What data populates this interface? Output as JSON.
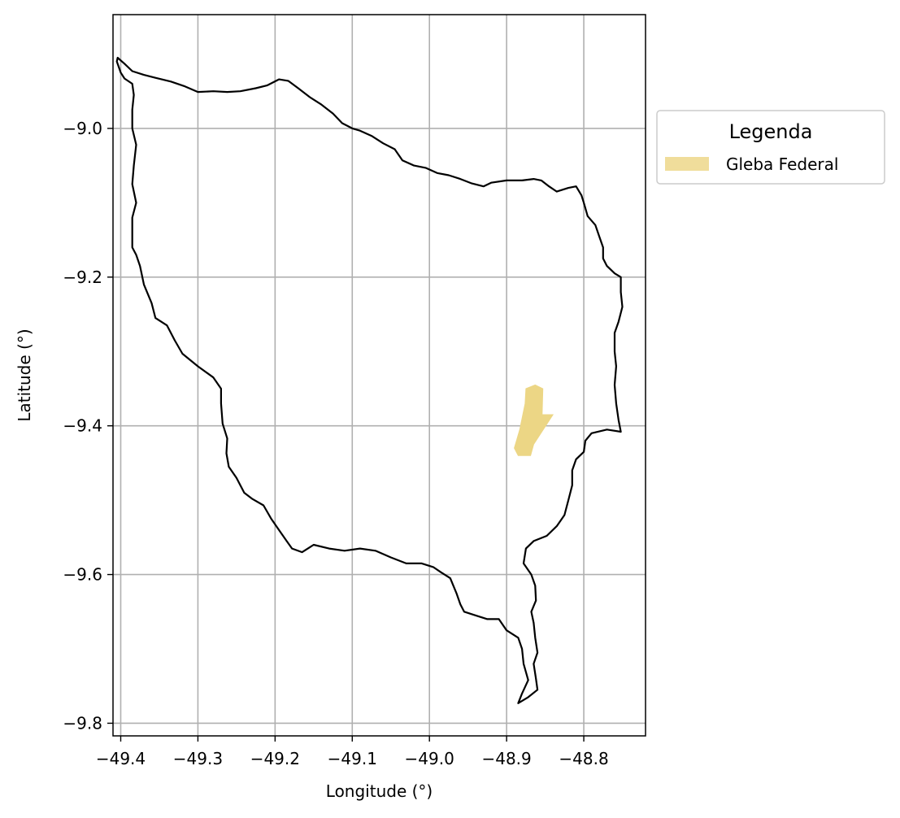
{
  "chart_data": {
    "type": "map",
    "title": "",
    "xlabel": "Longitude (°)",
    "ylabel": "Latitude (°)",
    "xlim": [
      -49.41,
      -48.72
    ],
    "ylim": [
      -9.817,
      -8.847
    ],
    "xticks": [
      -49.4,
      -49.3,
      -49.2,
      -49.1,
      -49.0,
      -48.9,
      -48.8
    ],
    "xtick_labels": [
      "−49.4",
      "−49.3",
      "−49.2",
      "−49.1",
      "−49.0",
      "−48.9",
      "−48.8"
    ],
    "yticks": [
      -9.0,
      -9.2,
      -9.4,
      -9.6,
      -9.8
    ],
    "ytick_labels": [
      "−9.0",
      "−9.2",
      "−9.4",
      "−9.6",
      "−9.8"
    ],
    "grid": true,
    "legend": {
      "title": "Legenda",
      "placement": "outside-right-top",
      "entries": [
        {
          "label": "Gleba Federal",
          "color": "#f0dd9b"
        }
      ]
    },
    "colors": {
      "boundary": "#000000",
      "gleba_fill": "#ecd685",
      "grid": "#b0b0b0"
    },
    "boundary": [
      [
        -49.404,
        -8.905
      ],
      [
        -49.395,
        -8.913
      ],
      [
        -49.385,
        -8.923
      ],
      [
        -49.37,
        -8.928
      ],
      [
        -49.355,
        -8.932
      ],
      [
        -49.335,
        -8.937
      ],
      [
        -49.318,
        -8.943
      ],
      [
        -49.3,
        -8.951
      ],
      [
        -49.28,
        -8.95
      ],
      [
        -49.262,
        -8.951
      ],
      [
        -49.245,
        -8.95
      ],
      [
        -49.225,
        -8.946
      ],
      [
        -49.21,
        -8.942
      ],
      [
        -49.195,
        -8.934
      ],
      [
        -49.183,
        -8.936
      ],
      [
        -49.17,
        -8.946
      ],
      [
        -49.155,
        -8.958
      ],
      [
        -49.14,
        -8.968
      ],
      [
        -49.125,
        -8.98
      ],
      [
        -49.113,
        -8.993
      ],
      [
        -49.1,
        -9.0
      ],
      [
        -49.09,
        -9.003
      ],
      [
        -49.075,
        -9.01
      ],
      [
        -49.06,
        -9.02
      ],
      [
        -49.045,
        -9.028
      ],
      [
        -49.035,
        -9.043
      ],
      [
        -49.02,
        -9.05
      ],
      [
        -49.005,
        -9.053
      ],
      [
        -48.99,
        -9.06
      ],
      [
        -48.975,
        -9.063
      ],
      [
        -48.96,
        -9.068
      ],
      [
        -48.945,
        -9.074
      ],
      [
        -48.93,
        -9.078
      ],
      [
        -48.92,
        -9.073
      ],
      [
        -48.9,
        -9.07
      ],
      [
        -48.88,
        -9.07
      ],
      [
        -48.865,
        -9.068
      ],
      [
        -48.855,
        -9.07
      ],
      [
        -48.845,
        -9.078
      ],
      [
        -48.835,
        -9.085
      ],
      [
        -48.82,
        -9.08
      ],
      [
        -48.81,
        -9.078
      ],
      [
        -48.803,
        -9.09
      ],
      [
        -48.8,
        -9.1
      ],
      [
        -48.795,
        -9.118
      ],
      [
        -48.785,
        -9.13
      ],
      [
        -48.78,
        -9.145
      ],
      [
        -48.775,
        -9.16
      ],
      [
        -48.775,
        -9.175
      ],
      [
        -48.77,
        -9.185
      ],
      [
        -48.76,
        -9.195
      ],
      [
        -48.752,
        -9.2
      ],
      [
        -48.752,
        -9.22
      ],
      [
        -48.75,
        -9.24
      ],
      [
        -48.755,
        -9.26
      ],
      [
        -48.76,
        -9.275
      ],
      [
        -48.76,
        -9.3
      ],
      [
        -48.758,
        -9.32
      ],
      [
        -48.76,
        -9.345
      ],
      [
        -48.758,
        -9.37
      ],
      [
        -48.755,
        -9.392
      ],
      [
        -48.752,
        -9.408
      ],
      [
        -48.77,
        -9.405
      ],
      [
        -48.79,
        -9.41
      ],
      [
        -48.798,
        -9.42
      ],
      [
        -48.8,
        -9.435
      ],
      [
        -48.81,
        -9.445
      ],
      [
        -48.815,
        -9.46
      ],
      [
        -48.815,
        -9.48
      ],
      [
        -48.82,
        -9.5
      ],
      [
        -48.825,
        -9.52
      ],
      [
        -48.835,
        -9.535
      ],
      [
        -48.848,
        -9.548
      ],
      [
        -48.865,
        -9.555
      ],
      [
        -48.875,
        -9.565
      ],
      [
        -48.878,
        -9.585
      ],
      [
        -48.868,
        -9.6
      ],
      [
        -48.863,
        -9.615
      ],
      [
        -48.862,
        -9.635
      ],
      [
        -48.868,
        -9.65
      ],
      [
        -48.865,
        -9.665
      ],
      [
        -48.863,
        -9.685
      ],
      [
        -48.86,
        -9.705
      ],
      [
        -48.865,
        -9.72
      ],
      [
        -48.862,
        -9.74
      ],
      [
        -48.86,
        -9.755
      ],
      [
        -48.872,
        -9.765
      ],
      [
        -48.885,
        -9.773
      ],
      [
        -48.88,
        -9.76
      ],
      [
        -48.872,
        -9.742
      ],
      [
        -48.878,
        -9.72
      ],
      [
        -48.88,
        -9.7
      ],
      [
        -48.885,
        -9.685
      ],
      [
        -48.9,
        -9.675
      ],
      [
        -48.91,
        -9.66
      ],
      [
        -48.925,
        -9.66
      ],
      [
        -48.94,
        -9.655
      ],
      [
        -48.955,
        -9.65
      ],
      [
        -48.96,
        -9.64
      ],
      [
        -48.965,
        -9.625
      ],
      [
        -48.973,
        -9.605
      ],
      [
        -48.985,
        -9.597
      ],
      [
        -48.995,
        -9.59
      ],
      [
        -49.01,
        -9.585
      ],
      [
        -49.03,
        -9.585
      ],
      [
        -49.05,
        -9.577
      ],
      [
        -49.07,
        -9.568
      ],
      [
        -49.09,
        -9.565
      ],
      [
        -49.11,
        -9.568
      ],
      [
        -49.13,
        -9.565
      ],
      [
        -49.15,
        -9.56
      ],
      [
        -49.165,
        -9.57
      ],
      [
        -49.178,
        -9.565
      ],
      [
        -49.185,
        -9.555
      ],
      [
        -49.195,
        -9.54
      ],
      [
        -49.205,
        -9.525
      ],
      [
        -49.215,
        -9.507
      ],
      [
        -49.23,
        -9.498
      ],
      [
        -49.24,
        -9.49
      ],
      [
        -49.25,
        -9.47
      ],
      [
        -49.26,
        -9.455
      ],
      [
        -49.263,
        -9.437
      ],
      [
        -49.262,
        -9.417
      ],
      [
        -49.268,
        -9.397
      ],
      [
        -49.27,
        -9.37
      ],
      [
        -49.27,
        -9.35
      ],
      [
        -49.28,
        -9.335
      ],
      [
        -49.3,
        -9.32
      ],
      [
        -49.32,
        -9.303
      ],
      [
        -49.33,
        -9.285
      ],
      [
        -49.34,
        -9.265
      ],
      [
        -49.355,
        -9.255
      ],
      [
        -49.36,
        -9.235
      ],
      [
        -49.37,
        -9.21
      ],
      [
        -49.375,
        -9.185
      ],
      [
        -49.38,
        -9.17
      ],
      [
        -49.385,
        -9.16
      ],
      [
        -49.385,
        -9.12
      ],
      [
        -49.38,
        -9.1
      ],
      [
        -49.385,
        -9.075
      ],
      [
        -49.383,
        -9.05
      ],
      [
        -49.38,
        -9.022
      ],
      [
        -49.385,
        -9.0
      ],
      [
        -49.385,
        -8.975
      ],
      [
        -49.383,
        -8.955
      ],
      [
        -49.385,
        -8.94
      ],
      [
        -49.395,
        -8.933
      ],
      [
        -49.4,
        -8.925
      ],
      [
        -49.405,
        -8.91
      ],
      [
        -49.404,
        -8.905
      ]
    ],
    "gleba_federal": [
      [
        -48.863,
        -9.345
      ],
      [
        -48.853,
        -9.35
      ],
      [
        -48.854,
        -9.385
      ],
      [
        -48.84,
        -9.385
      ],
      [
        -48.865,
        -9.425
      ],
      [
        -48.869,
        -9.44
      ],
      [
        -48.885,
        -9.44
      ],
      [
        -48.89,
        -9.43
      ],
      [
        -48.883,
        -9.405
      ],
      [
        -48.876,
        -9.37
      ],
      [
        -48.875,
        -9.35
      ]
    ]
  }
}
